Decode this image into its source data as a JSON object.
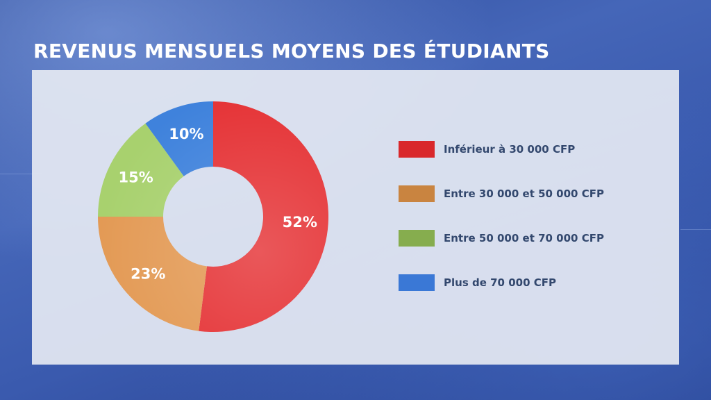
{
  "title": "REVENUS MENSUELS MOYENS DES ÉTUDIANTS",
  "chart_data": {
    "type": "pie",
    "style": "donut",
    "title": "REVENUS MENSUELS MOYENS DES ÉTUDIANTS",
    "legend_position": "right",
    "slices": [
      {
        "label": "Inférieur à 30 000 CFP",
        "value": 52,
        "value_label": "52%",
        "color": "#e53336"
      },
      {
        "label": "Entre 30 000 et 50 000 CFP",
        "value": 23,
        "value_label": "23%",
        "color": "#e39a55"
      },
      {
        "label": "Entre 50 000 et 70 000 CFP",
        "value": 15,
        "value_label": "15%",
        "color": "#a8d16e"
      },
      {
        "label": "Plus de 70 000 CFP",
        "value": 10,
        "value_label": "10%",
        "color": "#3f82dc"
      }
    ]
  },
  "legend_colors": [
    "#d9282b",
    "#c98440",
    "#86ad4e",
    "#3a78d6"
  ]
}
